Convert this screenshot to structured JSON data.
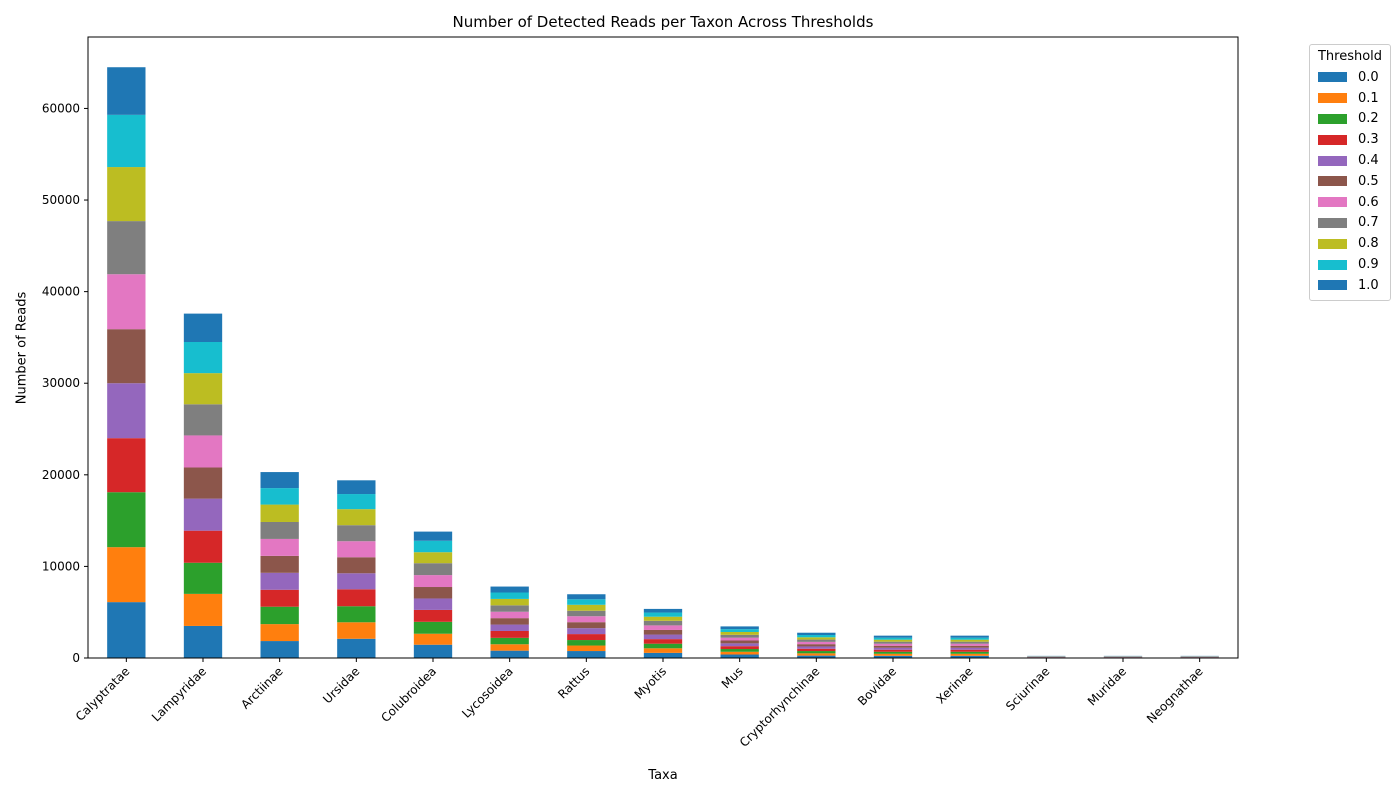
{
  "chart_data": {
    "type": "bar",
    "stacked": true,
    "title": "Number of Detected Reads per Taxon Across Thresholds",
    "xlabel": "Taxa",
    "ylabel": "Number of Reads",
    "ylim": [
      0,
      67800
    ],
    "yticks": [
      0,
      10000,
      20000,
      30000,
      40000,
      50000,
      60000
    ],
    "grid": false,
    "legend_title": "Threshold",
    "legend_position": "outside upper right",
    "categories": [
      "Calyptratae",
      "Lampyridae",
      "Arctiinae",
      "Ursidae",
      "Colubroidea",
      "Lycosoidea",
      "Rattus",
      "Myotis",
      "Mus",
      "Cryptorhynchinae",
      "Bovidae",
      "Xerinae",
      "Sciurinae",
      "Muridae",
      "Neognathae"
    ],
    "series": [
      {
        "name": "0.0",
        "color": "#1f77b4",
        "values": [
          6100,
          3500,
          1850,
          2100,
          1450,
          800,
          760,
          560,
          380,
          260,
          240,
          240,
          30,
          30,
          30
        ]
      },
      {
        "name": "0.1",
        "color": "#ff7f0e",
        "values": [
          6000,
          3500,
          1850,
          1800,
          1200,
          700,
          600,
          500,
          300,
          250,
          220,
          220,
          20,
          20,
          20
        ]
      },
      {
        "name": "0.2",
        "color": "#2ca02c",
        "values": [
          6000,
          3400,
          1900,
          1750,
          1300,
          700,
          600,
          500,
          300,
          250,
          220,
          220,
          20,
          20,
          20
        ]
      },
      {
        "name": "0.3",
        "color": "#d62728",
        "values": [
          5900,
          3500,
          1850,
          1850,
          1300,
          750,
          650,
          500,
          310,
          250,
          220,
          220,
          20,
          20,
          20
        ]
      },
      {
        "name": "0.4",
        "color": "#9467bd",
        "values": [
          6000,
          3500,
          1850,
          1750,
          1250,
          700,
          650,
          500,
          310,
          250,
          220,
          220,
          20,
          20,
          20
        ]
      },
      {
        "name": "0.5",
        "color": "#8c564b",
        "values": [
          5900,
          3400,
          1850,
          1750,
          1250,
          700,
          650,
          500,
          310,
          250,
          220,
          220,
          20,
          20,
          20
        ]
      },
      {
        "name": "0.6",
        "color": "#e377c2",
        "values": [
          6000,
          3500,
          1850,
          1750,
          1300,
          700,
          650,
          500,
          310,
          250,
          220,
          220,
          20,
          20,
          20
        ]
      },
      {
        "name": "0.7",
        "color": "#7f7f7f",
        "values": [
          5800,
          3400,
          1850,
          1750,
          1300,
          700,
          600,
          500,
          310,
          250,
          220,
          220,
          20,
          20,
          20
        ]
      },
      {
        "name": "0.8",
        "color": "#bcbd22",
        "values": [
          5900,
          3400,
          1900,
          1750,
          1200,
          700,
          650,
          450,
          310,
          250,
          220,
          220,
          20,
          20,
          20
        ]
      },
      {
        "name": "0.9",
        "color": "#17becf",
        "values": [
          5700,
          3400,
          1800,
          1650,
          1250,
          700,
          600,
          450,
          310,
          250,
          220,
          220,
          20,
          20,
          20
        ]
      },
      {
        "name": "1.0",
        "color": "#1f77b4",
        "values": [
          5200,
          3100,
          1750,
          1500,
          1000,
          650,
          550,
          400,
          300,
          250,
          220,
          220,
          20,
          20,
          20
        ]
      }
    ]
  }
}
